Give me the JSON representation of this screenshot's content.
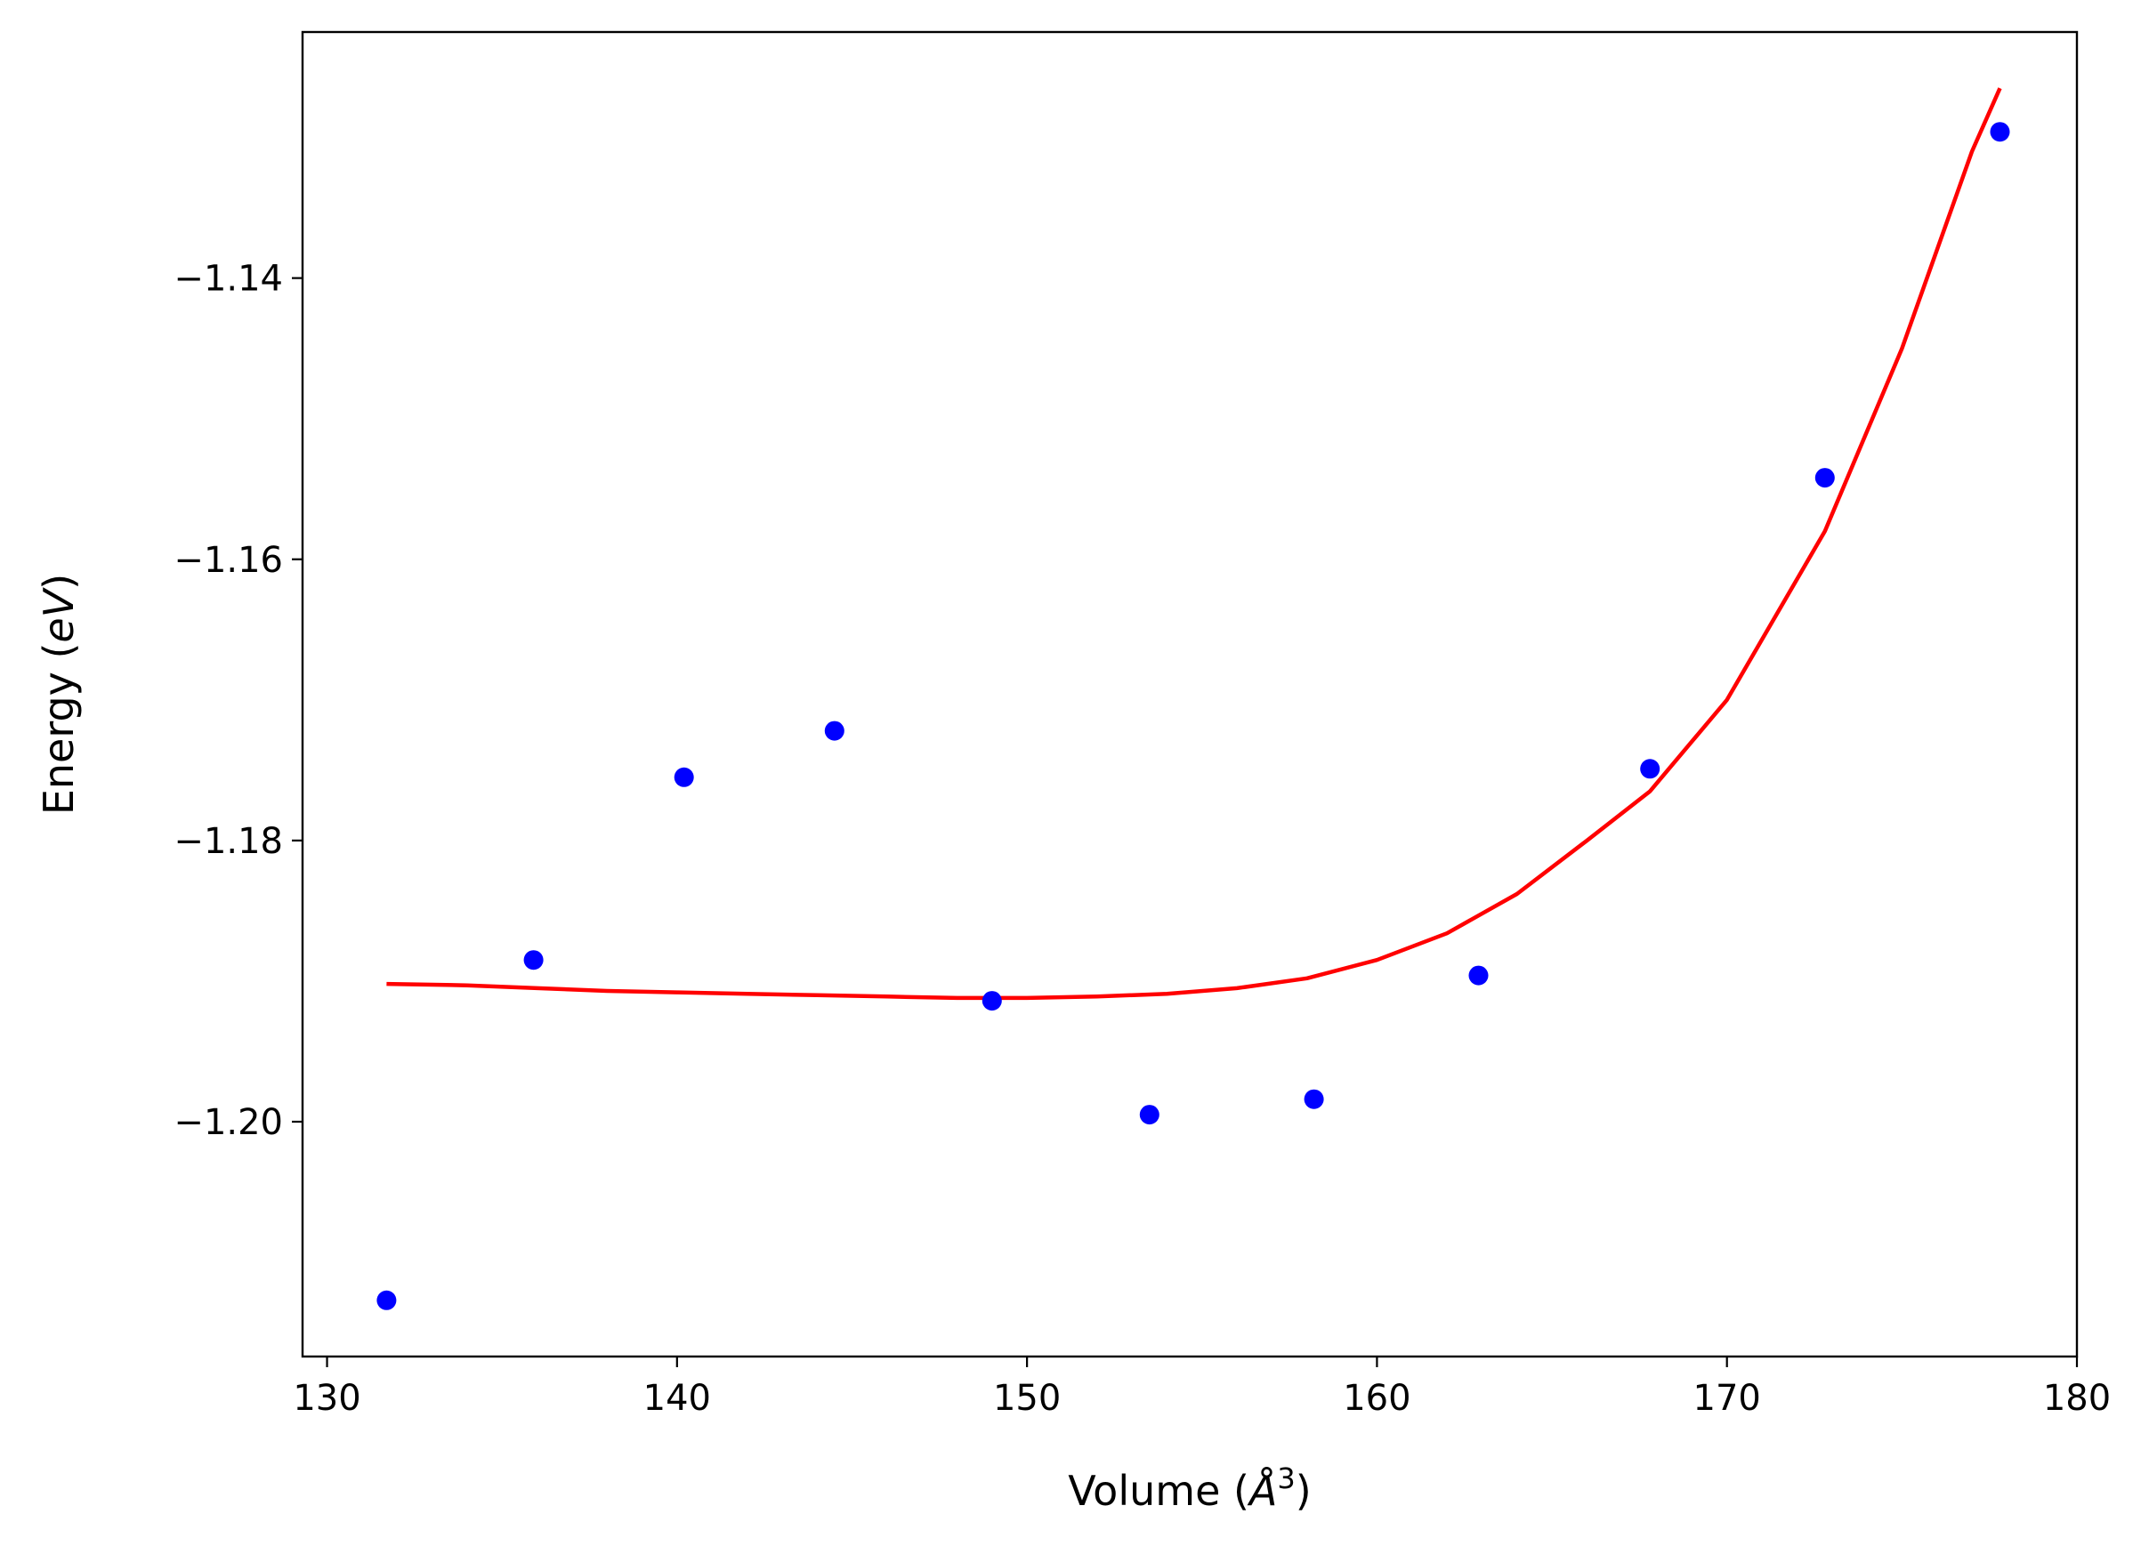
{
  "chart_data": {
    "type": "scatter",
    "title": "",
    "xlabel": {
      "prefix": "Volume (",
      "unit": "Å",
      "exponent": "3",
      "suffix": ")"
    },
    "ylabel": {
      "prefix": "Energy (",
      "unit": "eV",
      "suffix": ")"
    },
    "xlim": [
      129.3,
      180.0
    ],
    "ylim": [
      -1.2167,
      -1.1225
    ],
    "xticks": [
      {
        "value": 130,
        "label": "130"
      },
      {
        "value": 140,
        "label": "140"
      },
      {
        "value": 150,
        "label": "150"
      },
      {
        "value": 160,
        "label": "160"
      },
      {
        "value": 170,
        "label": "170"
      },
      {
        "value": 180,
        "label": "180"
      }
    ],
    "yticks": [
      {
        "value": -1.14,
        "label": "−1.14"
      },
      {
        "value": -1.16,
        "label": "−1.16"
      },
      {
        "value": -1.18,
        "label": "−1.18"
      },
      {
        "value": -1.2,
        "label": "−1.20"
      }
    ],
    "grid": false,
    "series": [
      {
        "kind": "points",
        "color": "#0000ff",
        "x": [
          131.7,
          135.9,
          140.2,
          144.5,
          149.0,
          153.5,
          158.2,
          162.9,
          167.8,
          172.8,
          177.8
        ],
        "y": [
          -1.2127,
          -1.1885,
          -1.1755,
          -1.1722,
          -1.1914,
          -1.1995,
          -1.1984,
          -1.1896,
          -1.1749,
          -1.1542,
          -1.1296
        ]
      },
      {
        "kind": "fit-curve",
        "color": "#ff0000",
        "x": [
          131.7,
          134,
          136,
          138,
          140,
          142,
          144,
          146,
          148,
          149,
          150,
          152,
          154,
          156,
          158,
          160,
          162,
          164,
          166,
          167.8,
          170,
          172.8,
          175,
          177,
          177.8
        ],
        "y": [
          -1.1902,
          -1.1903,
          -1.1905,
          -1.1907,
          -1.1908,
          -1.1909,
          -1.191,
          -1.1911,
          -1.1912,
          -1.1912,
          -1.1912,
          -1.1911,
          -1.1909,
          -1.1905,
          -1.1898,
          -1.1885,
          -1.1866,
          -1.1838,
          -1.18,
          -1.1765,
          -1.17,
          -1.158,
          -1.145,
          -1.131,
          -1.1265
        ]
      }
    ]
  }
}
